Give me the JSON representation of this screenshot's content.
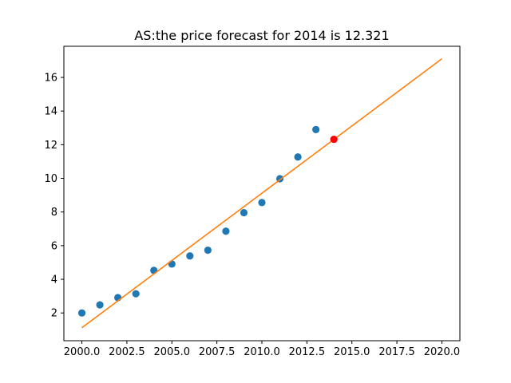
{
  "chart_data": {
    "type": "scatter",
    "title": "AS:the price forecast for 2014 is 12.321",
    "xlim": [
      1999.0,
      2021.0
    ],
    "ylim": [
      0.35,
      17.85
    ],
    "x_ticks": [
      2000.0,
      2002.5,
      2005.0,
      2007.5,
      2010.0,
      2012.5,
      2015.0,
      2017.5,
      2020.0
    ],
    "x_tick_labels": [
      "2000.0",
      "2002.5",
      "2005.0",
      "2007.5",
      "2010.0",
      "2012.5",
      "2015.0",
      "2017.5",
      "2020.0"
    ],
    "y_ticks": [
      2,
      4,
      6,
      8,
      10,
      12,
      14,
      16
    ],
    "y_tick_labels": [
      "2",
      "4",
      "6",
      "8",
      "10",
      "12",
      "14",
      "16"
    ],
    "grid": false,
    "series": [
      {
        "kind": "scatter",
        "color": "#1f77b4",
        "x": [
          2000,
          2001,
          2002,
          2003,
          2004,
          2005,
          2006,
          2007,
          2008,
          2009,
          2010,
          2011,
          2012,
          2013
        ],
        "y": [
          2.0,
          2.48,
          2.91,
          3.14,
          4.53,
          4.91,
          5.39,
          5.73,
          6.86,
          7.96,
          8.56,
          9.98,
          11.27,
          12.9
        ]
      },
      {
        "kind": "line",
        "color": "#ff7f0e",
        "x": [
          2000,
          2020
        ],
        "y": [
          1.12,
          17.11
        ]
      },
      {
        "kind": "scatter",
        "color": "#ff0000",
        "x": [
          2014
        ],
        "y": [
          12.321
        ]
      }
    ]
  }
}
